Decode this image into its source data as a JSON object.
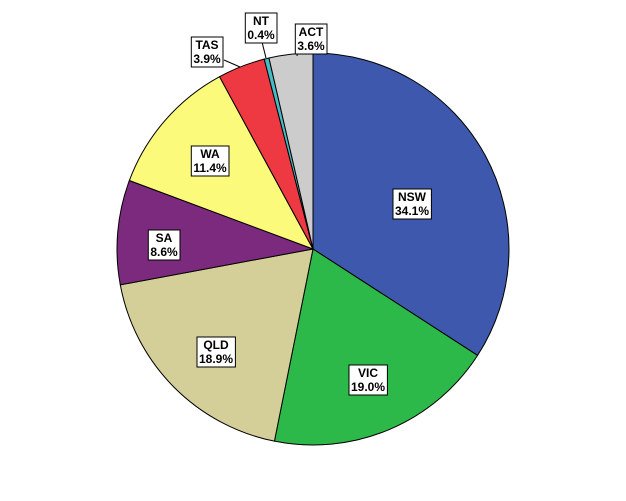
{
  "chart_data": {
    "type": "pie",
    "start_angle_deg": 0,
    "direction": "clockwise",
    "slices": [
      {
        "label": "NSW",
        "pct_label": "34.1%",
        "value": 34.1,
        "color": "#3d58ad"
      },
      {
        "label": "VIC",
        "pct_label": "19.0%",
        "value": 19.0,
        "color": "#2db84a"
      },
      {
        "label": "QLD",
        "pct_label": "18.9%",
        "value": 18.9,
        "color": "#d4cf99"
      },
      {
        "label": "SA",
        "pct_label": "8.6%",
        "value": 8.6,
        "color": "#7b2a7d"
      },
      {
        "label": "WA",
        "pct_label": "11.4%",
        "value": 11.4,
        "color": "#fbfa7b"
      },
      {
        "label": "TAS",
        "pct_label": "3.9%",
        "value": 3.9,
        "color": "#ee3942"
      },
      {
        "label": "NT",
        "pct_label": "0.4%",
        "value": 0.4,
        "color": "#45bcc4"
      },
      {
        "label": "ACT",
        "pct_label": "3.6%",
        "value": 3.6,
        "color": "#cccccc"
      }
    ]
  }
}
